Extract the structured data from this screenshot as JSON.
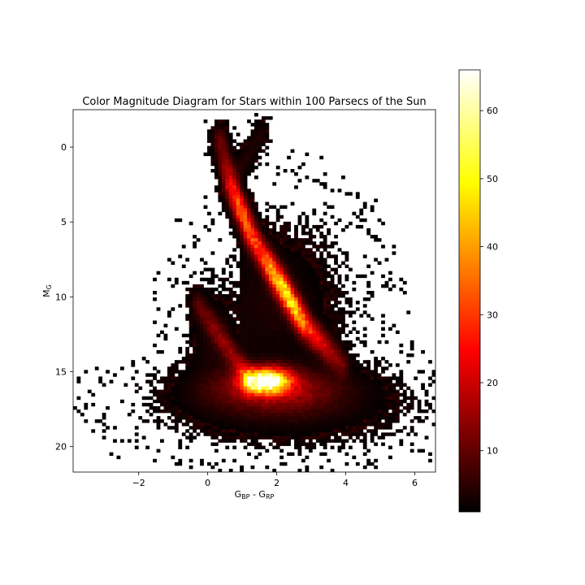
{
  "chart_data": [
    {
      "type": "heatmap",
      "title": "Color Magnitude Diagram for Stars within 100 Parsecs of the Sun",
      "xlabel": {
        "main": "G",
        "sub1": "BP",
        "mid": " - G",
        "sub2": "RP"
      },
      "ylabel": {
        "main": "M",
        "sub": "G"
      },
      "xlim": [
        -3.9,
        6.6
      ],
      "ylim": [
        21.7,
        -2.5
      ],
      "y_inverted": true,
      "x_ticks": [
        {
          "value": -2,
          "label": "−2"
        },
        {
          "value": 0,
          "label": "0"
        },
        {
          "value": 2,
          "label": "2"
        },
        {
          "value": 4,
          "label": "4"
        },
        {
          "value": 6,
          "label": "6"
        }
      ],
      "y_ticks": [
        {
          "value": 0,
          "label": "0"
        },
        {
          "value": 5,
          "label": "5"
        },
        {
          "value": 10,
          "label": "10"
        },
        {
          "value": 15,
          "label": "15"
        },
        {
          "value": 20,
          "label": "20"
        }
      ],
      "colormap": "hot",
      "empty_bins": "white",
      "features": [
        {
          "x": 1.7,
          "y": 15.6,
          "peak_count": 65
        },
        {
          "x": 2.3,
          "y": 9.5,
          "peak_count": 45
        },
        {
          "x": 2.8,
          "y": 11.4,
          "peak_count": 50
        },
        {
          "x": 1.0,
          "y": 4.5,
          "peak_count": 40
        },
        {
          "x": 0.6,
          "y": 2.3,
          "peak_count": 22
        },
        {
          "x": 0.3,
          "y": 12.8,
          "peak_count": 14
        }
      ],
      "colorbar": {
        "range": [
          1,
          66
        ],
        "ticks": [
          {
            "value": 10,
            "label": "10"
          },
          {
            "value": 20,
            "label": "20"
          },
          {
            "value": 30,
            "label": "30"
          },
          {
            "value": 40,
            "label": "40"
          },
          {
            "value": 50,
            "label": "50"
          },
          {
            "value": 60,
            "label": "60"
          }
        ]
      }
    }
  ]
}
